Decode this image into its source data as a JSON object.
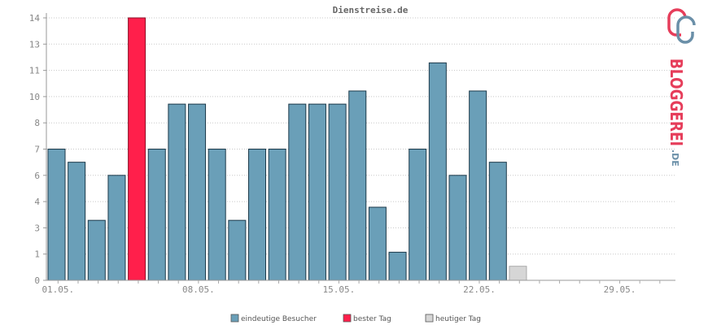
{
  "chart_data": {
    "type": "bar",
    "title": "Dienstreise.de",
    "y_tick_labels": [
      "0",
      "1",
      "3",
      "4",
      "6",
      "7",
      "8",
      "10",
      "11",
      "13",
      "14"
    ],
    "ylim": [
      0,
      14
    ],
    "x_tick_labels": [
      "01.05.",
      "08.05.",
      "15.05.",
      "22.05.",
      "29.05."
    ],
    "values": [
      7,
      6.3,
      3.2,
      5.6,
      14,
      7,
      9.4,
      9.4,
      7,
      3.2,
      7,
      7,
      9.4,
      9.4,
      9.4,
      10.1,
      3.9,
      1.5,
      7,
      11.6,
      5.6,
      10.1,
      6.3
    ],
    "best_day_index": 4,
    "today_value": 0.75,
    "total_days": 31,
    "grid": true,
    "legend_position": "bottom",
    "legend": [
      {
        "label": "eindeutige Besucher",
        "color": "#6a9fb8"
      },
      {
        "label": "bester Tag",
        "color": "#ff1f4b"
      },
      {
        "label": "heutiger Tag",
        "color": "#d6d6d6"
      }
    ],
    "colors": {
      "bar": "#6a9fb8",
      "best": "#ff1f4b",
      "today": "#d6d6d6",
      "bar_stroke": "#1d3a4a"
    }
  },
  "logo": {
    "text": "BLOGGEREI",
    "suffix": ".DE",
    "icon": "bloggerei-logo-icon",
    "colors": {
      "primary": "#e63d5a",
      "secondary": "#6a8fa8"
    }
  }
}
